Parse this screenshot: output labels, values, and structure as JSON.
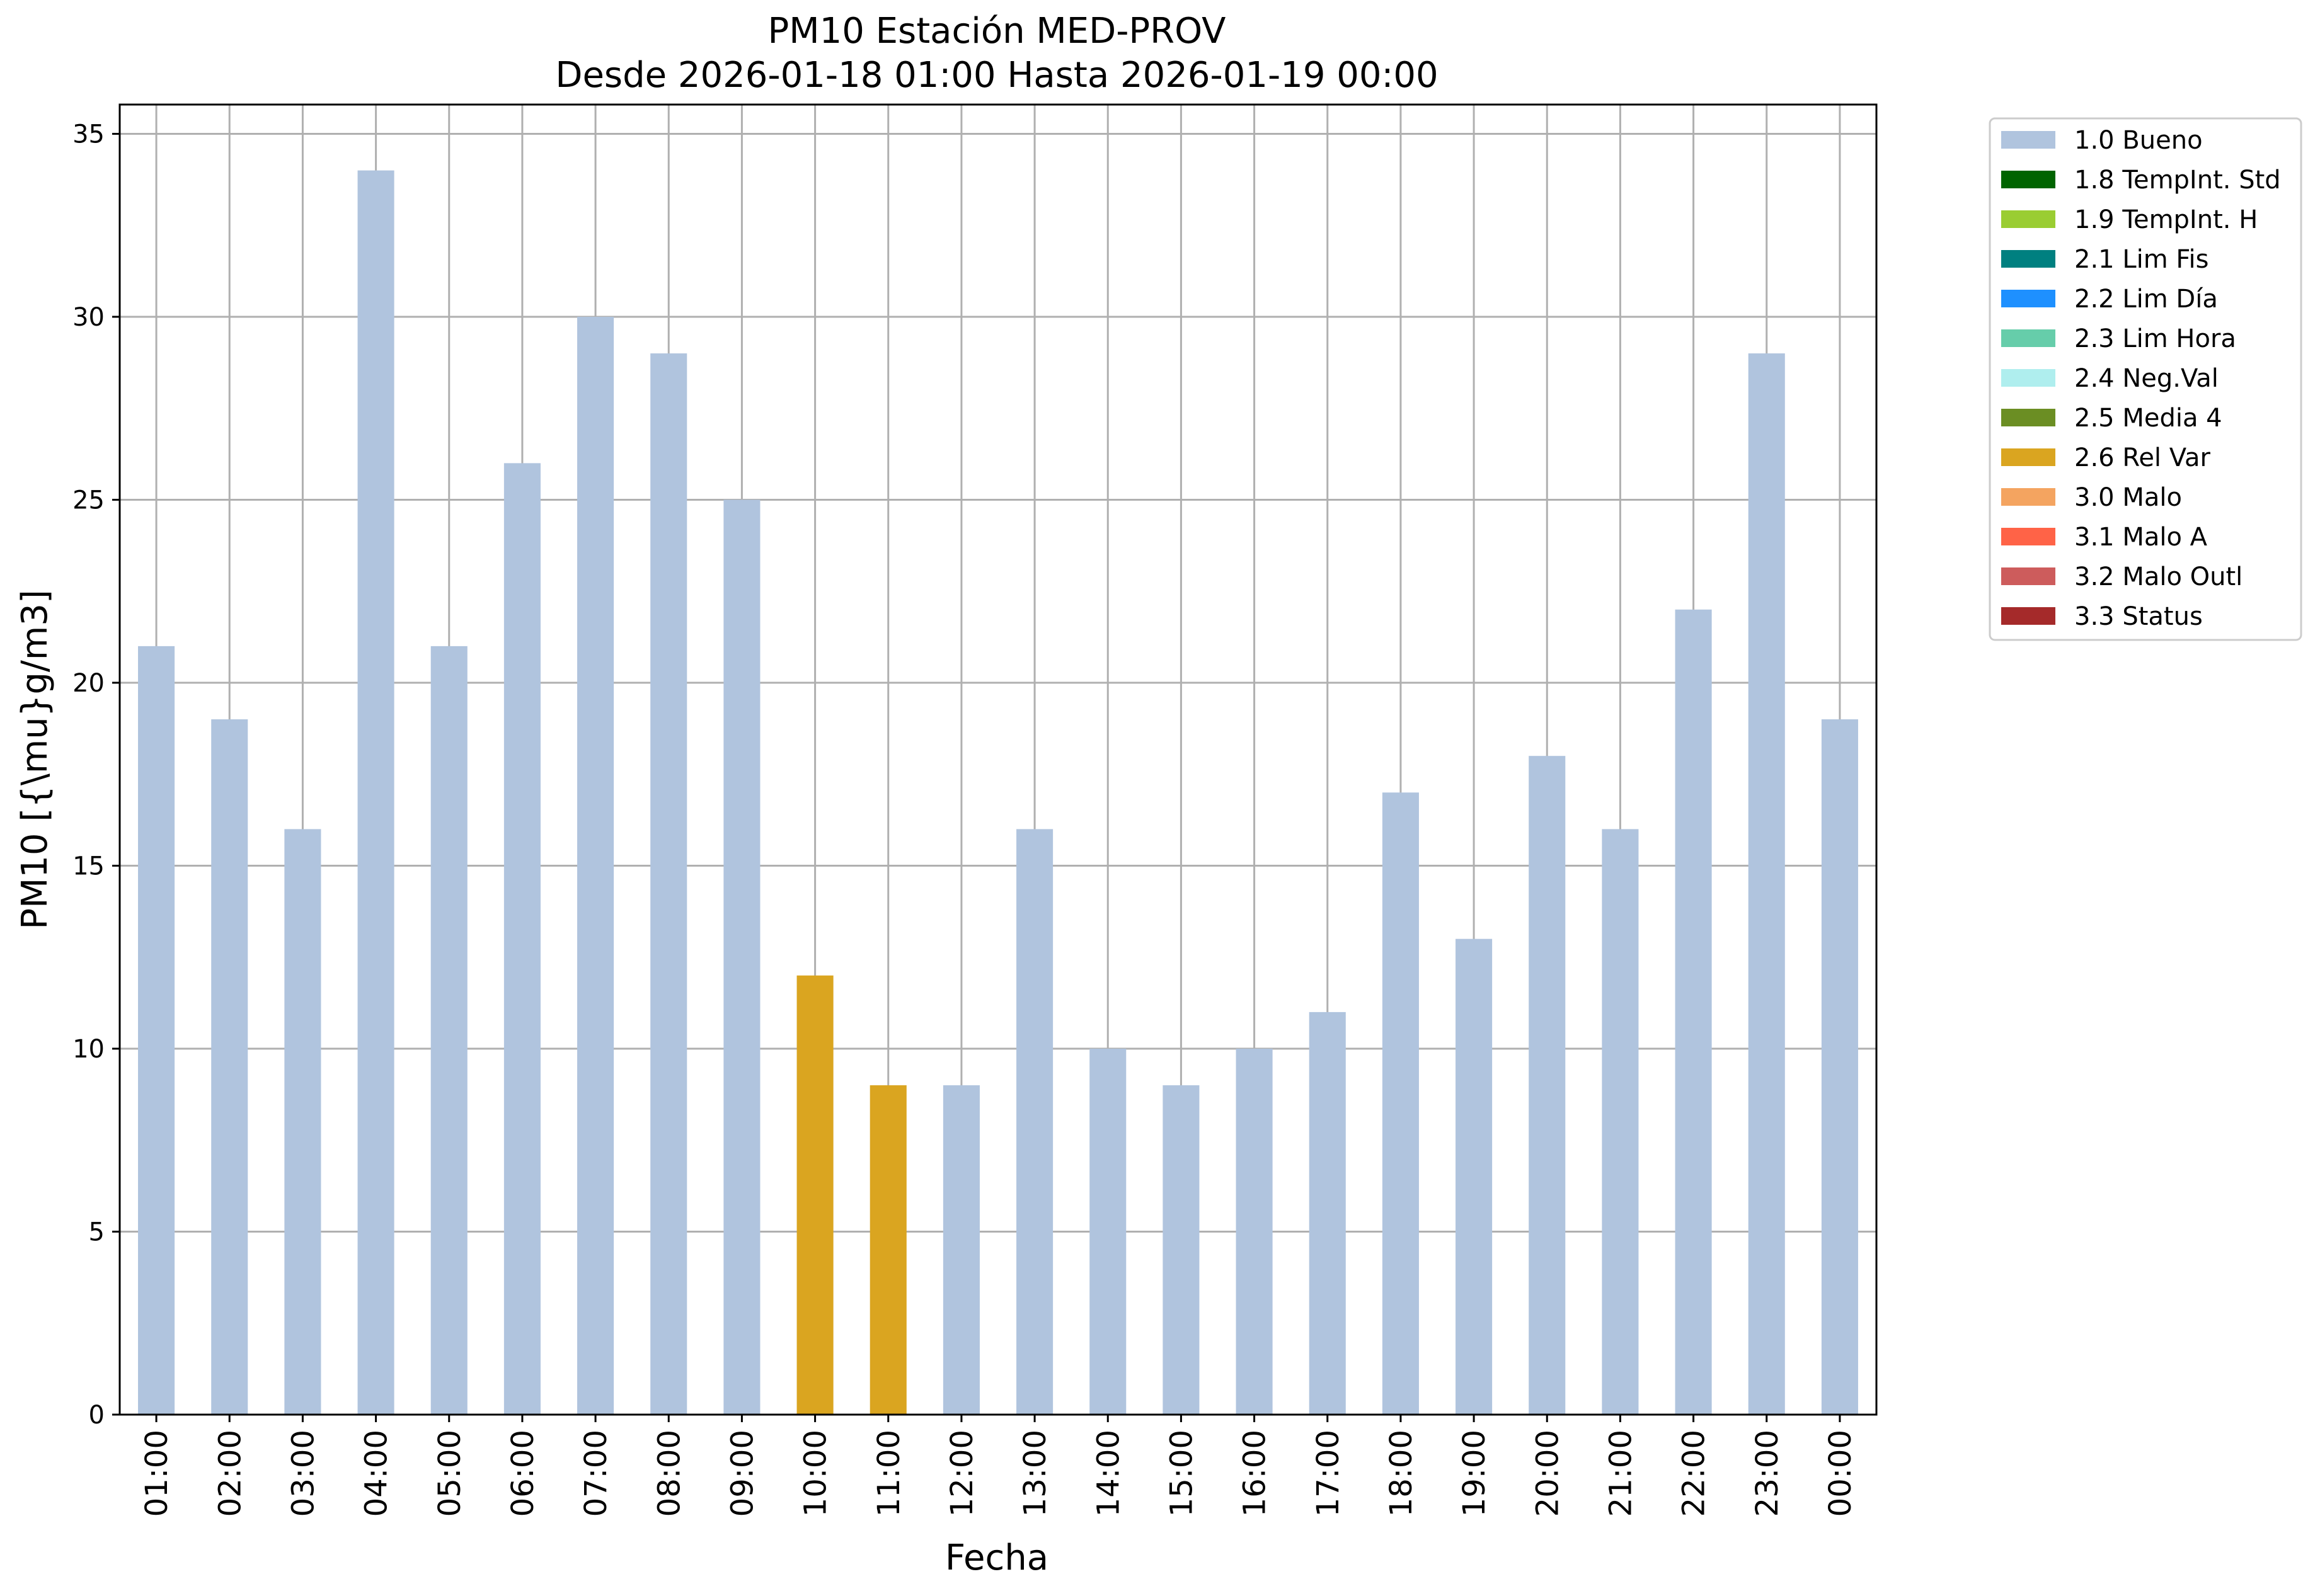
{
  "chart_data": {
    "type": "bar",
    "title": "PM10 Estación MED-PROV",
    "subtitle": "Desde 2026-01-18 01:00 Hasta 2026-01-19 00:00",
    "xlabel": "Fecha",
    "ylabel": "PM10 [{\\mu}g/m3]",
    "ylim": [
      0,
      35.8
    ],
    "yticks": [
      0,
      5,
      10,
      15,
      20,
      25,
      30,
      35
    ],
    "grid": true,
    "legend_position": "outside-right-top",
    "categories": [
      "01:00",
      "02:00",
      "03:00",
      "04:00",
      "05:00",
      "06:00",
      "07:00",
      "08:00",
      "09:00",
      "10:00",
      "11:00",
      "12:00",
      "13:00",
      "14:00",
      "15:00",
      "16:00",
      "17:00",
      "18:00",
      "19:00",
      "20:00",
      "21:00",
      "22:00",
      "23:00",
      "00:00"
    ],
    "values": [
      21,
      19,
      16,
      34,
      21,
      26,
      30,
      29,
      25,
      12,
      9,
      9,
      16,
      10,
      9,
      10,
      11,
      17,
      13,
      18,
      16,
      22,
      29,
      19
    ],
    "flags": [
      "1.0 Bueno",
      "1.0 Bueno",
      "1.0 Bueno",
      "1.0 Bueno",
      "1.0 Bueno",
      "1.0 Bueno",
      "1.0 Bueno",
      "1.0 Bueno",
      "1.0 Bueno",
      "2.6 Rel Var",
      "2.6 Rel Var",
      "1.0 Bueno",
      "1.0 Bueno",
      "1.0 Bueno",
      "1.0 Bueno",
      "1.0 Bueno",
      "1.0 Bueno",
      "1.0 Bueno",
      "1.0 Bueno",
      "1.0 Bueno",
      "1.0 Bueno",
      "1.0 Bueno",
      "1.0 Bueno",
      "1.0 Bueno"
    ],
    "legend": [
      {
        "label": "1.0 Bueno",
        "color": "#b0c4de"
      },
      {
        "label": "1.8 TempInt. Std",
        "color": "#006400"
      },
      {
        "label": "1.9 TempInt. H",
        "color": "#9acd32"
      },
      {
        "label": "2.1 Lim Fis",
        "color": "#008080"
      },
      {
        "label": "2.2 Lim Día",
        "color": "#1e90ff"
      },
      {
        "label": "2.3 Lim Hora",
        "color": "#66cdaa"
      },
      {
        "label": "2.4 Neg.Val",
        "color": "#afeeee"
      },
      {
        "label": "2.5 Media 4",
        "color": "#6b8e23"
      },
      {
        "label": "2.6 Rel Var",
        "color": "#daa520"
      },
      {
        "label": "3.0 Malo",
        "color": "#f4a460"
      },
      {
        "label": "3.1 Malo A",
        "color": "#ff6347"
      },
      {
        "label": "3.2 Malo Outl",
        "color": "#cd5c5c"
      },
      {
        "label": "3.3 Status",
        "color": "#a52a2a"
      }
    ],
    "colors": {
      "grid": "#b0b0b0",
      "axes": "#000000"
    }
  }
}
